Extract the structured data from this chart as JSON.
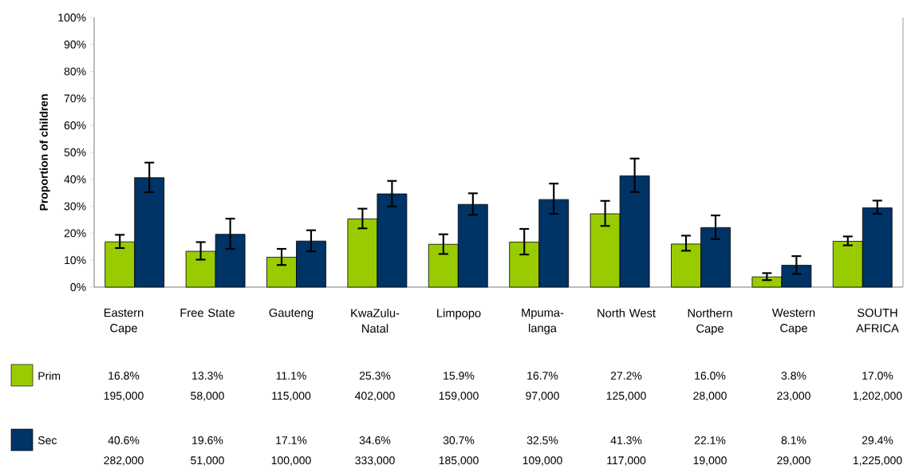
{
  "chart_data": {
    "type": "bar",
    "ylabel": "Proportion of children",
    "categories": [
      "Eastern Cape",
      "Free State",
      "Gauteng",
      "KwaZulu-Natal",
      "Limpopo",
      "Mpuma-langa",
      "North West",
      "Northern Cape",
      "Western Cape",
      "SOUTH AFRICA"
    ],
    "series": [
      {
        "name": "Prim",
        "color": "#99cc00",
        "values": [
          16.8,
          13.3,
          11.1,
          25.3,
          15.9,
          16.7,
          27.2,
          16.0,
          3.8,
          17.0
        ],
        "value_labels": [
          "16.8%",
          "13.3%",
          "11.1%",
          "25.3%",
          "15.9%",
          "16.7%",
          "27.2%",
          "16.0%",
          "3.8%",
          "17.0%"
        ],
        "errors": [
          [
            14.5,
            19.4
          ],
          [
            10.2,
            16.7
          ],
          [
            8.2,
            14.2
          ],
          [
            21.8,
            29.1
          ],
          [
            12.3,
            19.6
          ],
          [
            12.1,
            21.6
          ],
          [
            22.7,
            32.0
          ],
          [
            13.5,
            19.1
          ],
          [
            2.6,
            5.2
          ],
          [
            15.5,
            18.8
          ]
        ]
      },
      {
        "name": "Sec",
        "color": "#003366",
        "values": [
          40.6,
          19.6,
          17.1,
          34.6,
          30.7,
          32.5,
          41.3,
          22.1,
          8.1,
          29.4
        ],
        "value_labels": [
          "40.6%",
          "19.6%",
          "17.1%",
          "34.6%",
          "30.7%",
          "32.5%",
          "41.3%",
          "22.1%",
          "8.1%",
          "29.4%"
        ],
        "errors": [
          [
            35.2,
            46.2
          ],
          [
            14.2,
            25.4
          ],
          [
            13.3,
            21.1
          ],
          [
            29.9,
            39.4
          ],
          [
            26.8,
            34.8
          ],
          [
            27.2,
            38.4
          ],
          [
            35.3,
            47.7
          ],
          [
            17.8,
            26.6
          ],
          [
            4.9,
            11.5
          ],
          [
            27.2,
            32.1
          ]
        ]
      }
    ],
    "annotations": [
      "195,000",
      "58,000",
      "115,000",
      "402,000",
      "159,000",
      "97,000",
      "125,000",
      "28,000",
      "23,000",
      "1,202,000",
      "282,000",
      "51,000",
      "100,000",
      "333,000",
      "185,000",
      "109,000",
      "117,000",
      "19,000",
      "29,000",
      "1,225,000"
    ],
    "ylim": [
      0,
      100
    ],
    "yticks": [
      {
        "value": 0,
        "label": "0%"
      },
      {
        "value": 10,
        "label": "10%"
      },
      {
        "value": 20,
        "label": "20%"
      },
      {
        "value": 30,
        "label": "30%"
      },
      {
        "value": 40,
        "label": "40%"
      },
      {
        "value": 50,
        "label": "50%"
      },
      {
        "value": 60,
        "label": "60%"
      },
      {
        "value": 70,
        "label": "70%"
      },
      {
        "value": 80,
        "label": "80%"
      },
      {
        "value": 90,
        "label": "90%"
      },
      {
        "value": 100,
        "label": "100%"
      }
    ],
    "grid": false,
    "legend": "bottom"
  }
}
